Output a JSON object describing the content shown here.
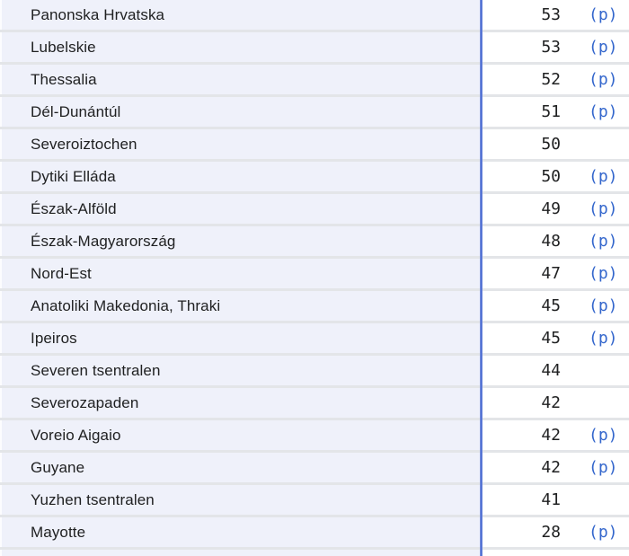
{
  "table": {
    "provisional_marker": "(p)",
    "colors": {
      "row_background": "#eff1fa",
      "value_background": "#ffffff",
      "separator": "#e3e5e8",
      "column_divider_blue": "#4a6bd0",
      "provisional_link_blue": "#3366cc",
      "text": "#202122"
    },
    "rows": [
      {
        "region": "Panonska Hrvatska",
        "value": "53",
        "provisional": true
      },
      {
        "region": "Lubelskie",
        "value": "53",
        "provisional": true
      },
      {
        "region": "Thessalia",
        "value": "52",
        "provisional": true
      },
      {
        "region": "Dél-Dunántúl",
        "value": "51",
        "provisional": true
      },
      {
        "region": "Severoiztochen",
        "value": "50",
        "provisional": false
      },
      {
        "region": "Dytiki Elláda",
        "value": "50",
        "provisional": true
      },
      {
        "region": "Észak-Alföld",
        "value": "49",
        "provisional": true
      },
      {
        "region": "Észak-Magyarország",
        "value": "48",
        "provisional": true
      },
      {
        "region": "Nord-Est",
        "value": "47",
        "provisional": true
      },
      {
        "region": "Anatoliki Makedonia, Thraki",
        "value": "45",
        "provisional": true
      },
      {
        "region": "Ipeiros",
        "value": "45",
        "provisional": true
      },
      {
        "region": "Severen tsentralen",
        "value": "44",
        "provisional": false
      },
      {
        "region": "Severozapaden",
        "value": "42",
        "provisional": false
      },
      {
        "region": "Voreio Aigaio",
        "value": "42",
        "provisional": true
      },
      {
        "region": "Guyane",
        "value": "42",
        "provisional": true
      },
      {
        "region": "Yuzhen tsentralen",
        "value": "41",
        "provisional": false
      },
      {
        "region": "Mayotte",
        "value": "28",
        "provisional": true
      },
      {
        "region": "",
        "value": "",
        "provisional": false
      }
    ]
  }
}
